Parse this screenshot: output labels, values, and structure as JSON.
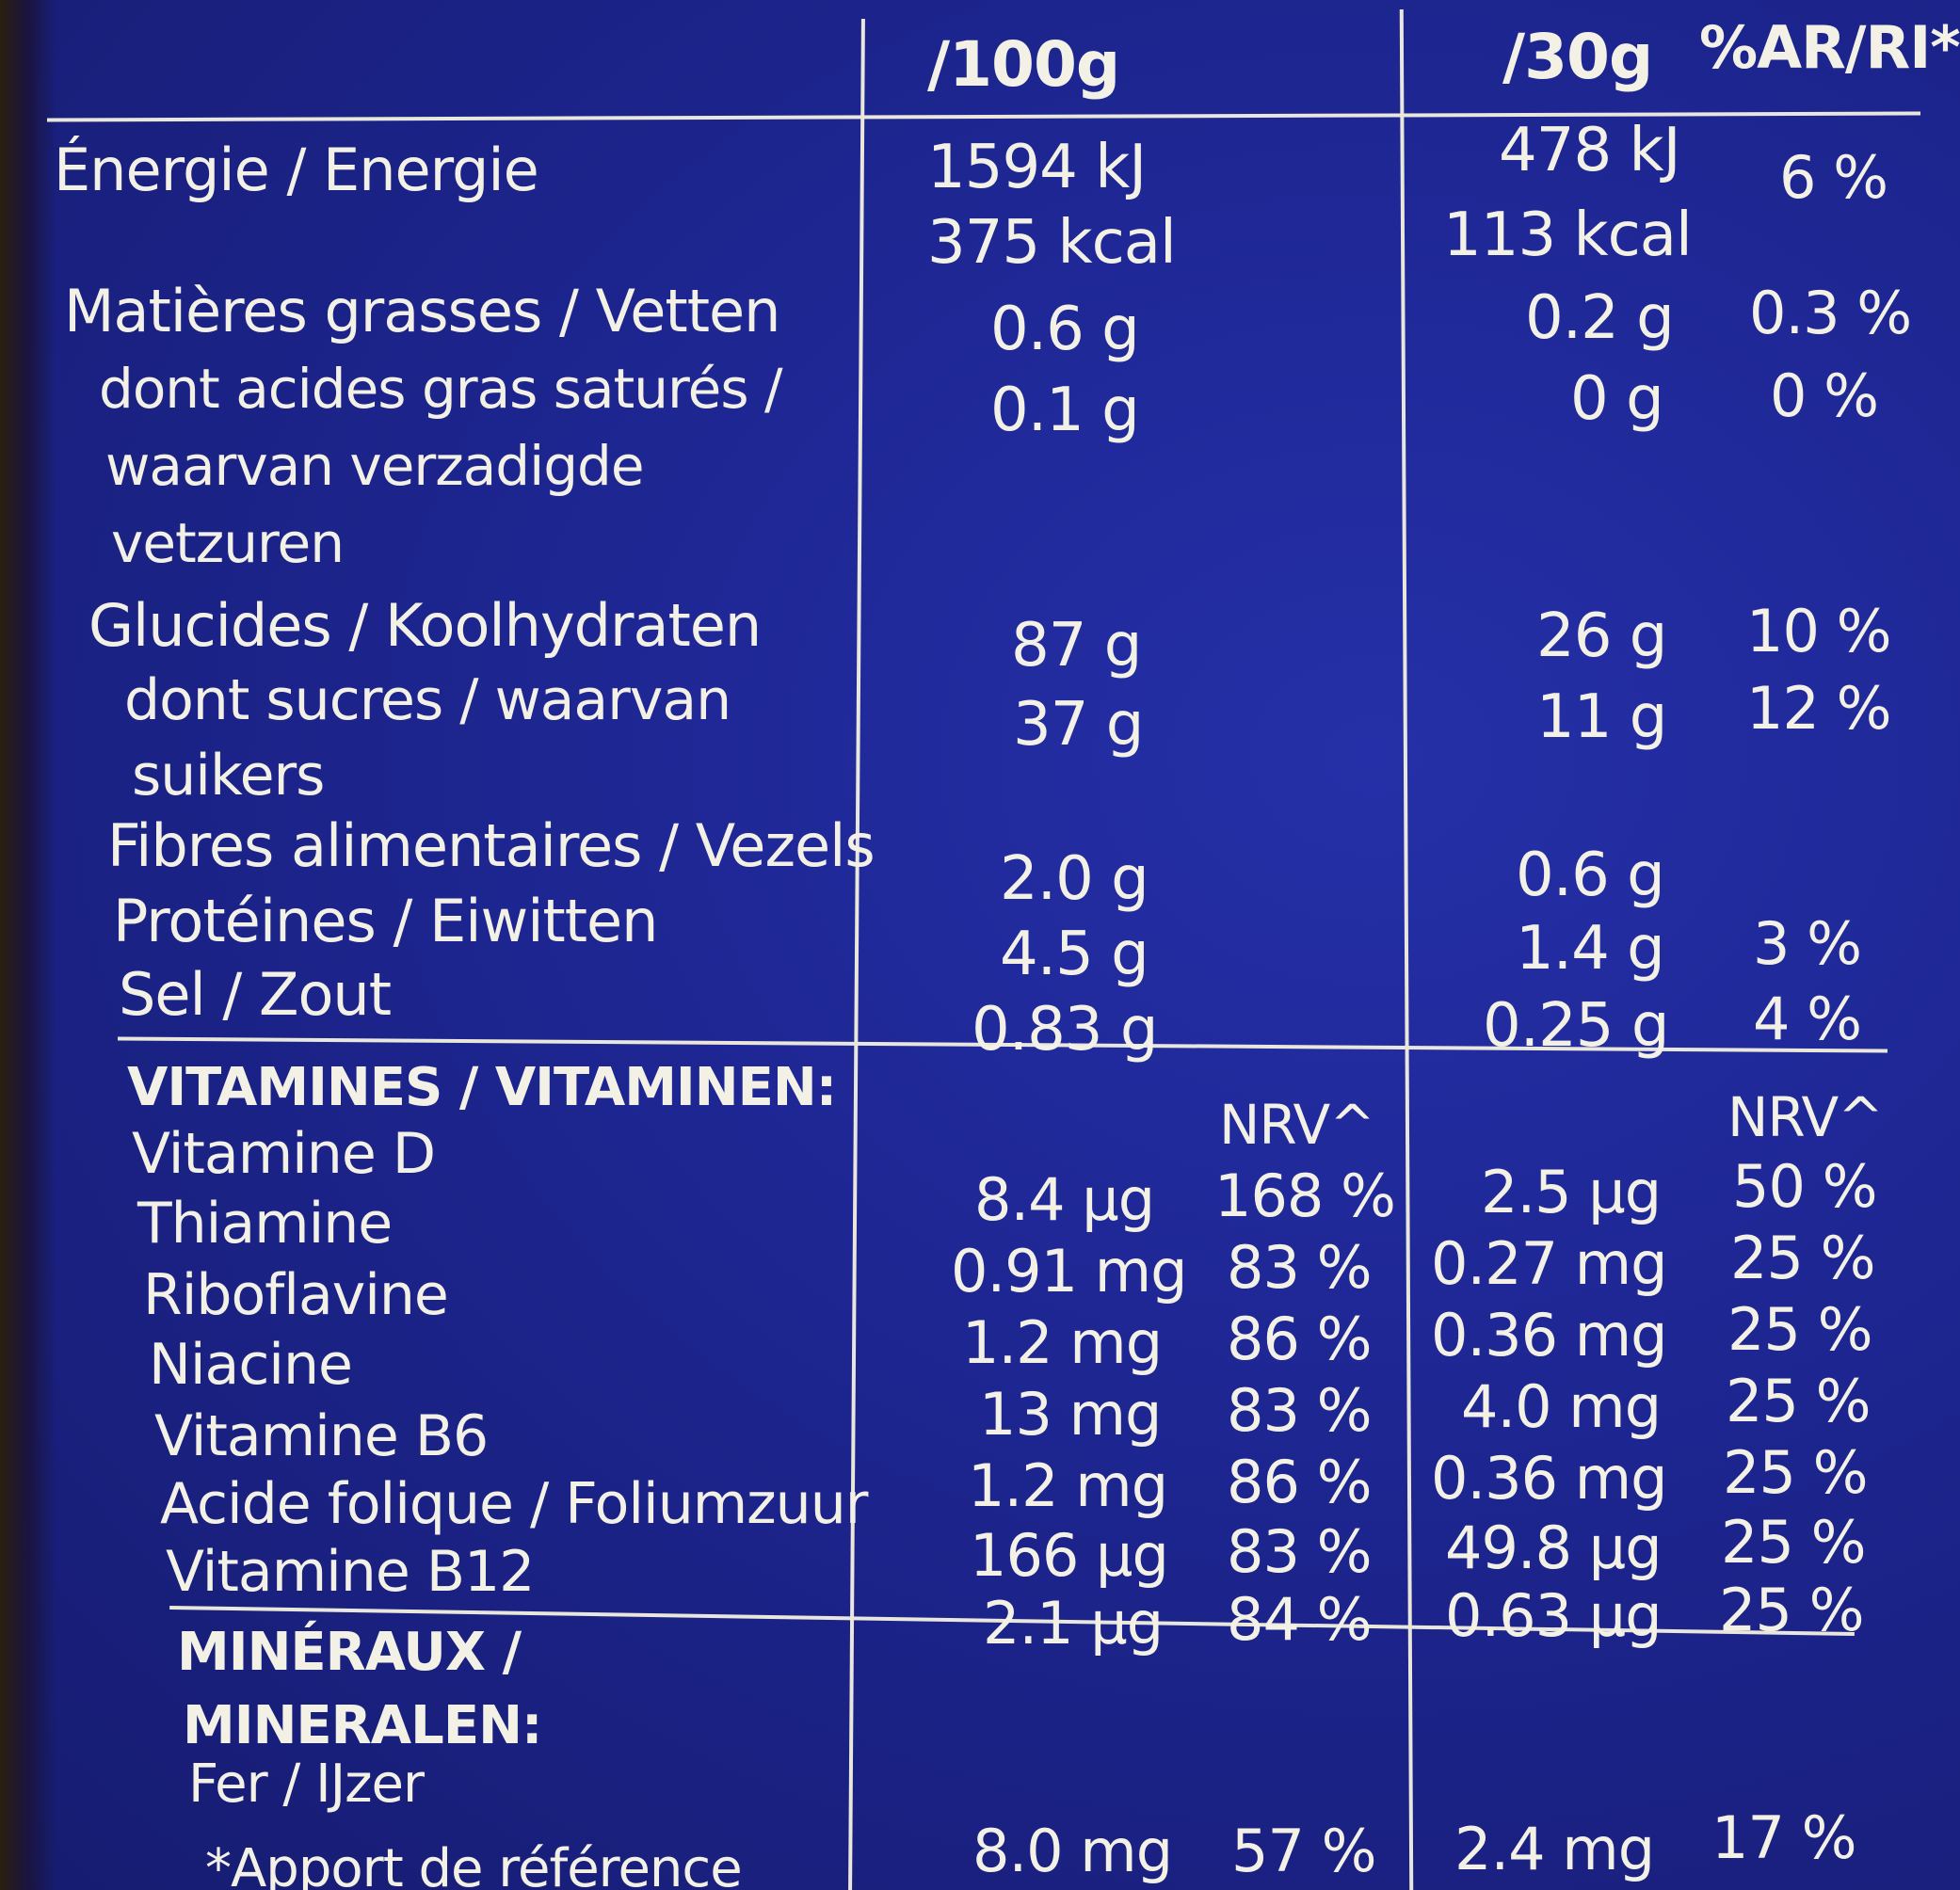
{
  "header": {
    "per100": "/100g",
    "per30": "/30g",
    "ri": "%AR/RI*"
  },
  "nutrients": {
    "energy": {
      "label": "Énergie / Energie",
      "kj100": "1594 kJ",
      "kcal100": "375 kcal",
      "kj30": "478 kJ",
      "kcal30": "113 kcal",
      "ri": "6 %"
    },
    "fat": {
      "label": "Matières grasses / Vetten",
      "v100": "0.6 g",
      "v30": "0.2 g",
      "ri": "0.3 %"
    },
    "satfat": {
      "label1": "dont acides gras saturés /",
      "label2": "waarvan verzadigde",
      "label3": "vetzuren",
      "v100": "0.1 g",
      "v30": "0 g",
      "ri": "0 %"
    },
    "carbs": {
      "label": "Glucides / Koolhydraten",
      "v100": "87 g",
      "v30": "26 g",
      "ri": "10 %"
    },
    "sugars": {
      "label1": "dont sucres / waarvan",
      "label2": "suikers",
      "v100": "37 g",
      "v30": "11 g",
      "ri": "12 %"
    },
    "fibre": {
      "label": "Fibres alimentaires / Vezels",
      "v100": "2.0 g",
      "v30": "0.6 g"
    },
    "protein": {
      "label": "Protéines / Eiwitten",
      "v100": "4.5 g",
      "v30": "1.4 g",
      "ri": "3 %"
    },
    "salt": {
      "label": "Sel / Zout",
      "v100": "0.83 g",
      "v30": "0.25 g",
      "ri": "4 %"
    }
  },
  "vitamins": {
    "heading": "VITAMINES / VITAMINEN:",
    "nrv100": "NRV^",
    "nrv30": "NRV^",
    "rows": [
      {
        "label": "Vitamine D",
        "v100": "8.4 µg",
        "nrv100": "168 %",
        "v30": "2.5 µg",
        "nrv30": "50 %"
      },
      {
        "label": "Thiamine",
        "v100": "0.91 mg",
        "nrv100": "83 %",
        "v30": "0.27 mg",
        "nrv30": "25 %"
      },
      {
        "label": "Riboflavine",
        "v100": "1.2 mg",
        "nrv100": "86 %",
        "v30": "0.36 mg",
        "nrv30": "25 %"
      },
      {
        "label": "Niacine",
        "v100": "13 mg",
        "nrv100": "83 %",
        "v30": "4.0 mg",
        "nrv30": "25 %"
      },
      {
        "label": "Vitamine B6",
        "v100": "1.2 mg",
        "nrv100": "86 %",
        "v30": "0.36 mg",
        "nrv30": "25 %"
      },
      {
        "label": "Acide folique / Foliumzuur",
        "v100": "166 µg",
        "nrv100": "83 %",
        "v30": "49.8 µg",
        "nrv30": "25 %"
      },
      {
        "label": "Vitamine B12",
        "v100": "2.1 µg",
        "nrv100": "84 %",
        "v30": "0.63 µg",
        "nrv30": "25 %"
      }
    ]
  },
  "minerals": {
    "heading1": "MINÉRAUX /",
    "heading2": "MINERALEN:",
    "iron": {
      "label": "Fer / IJzer",
      "v100": "8.0 mg",
      "nrv100": "57 %",
      "v30": "2.4 mg",
      "nrv30": "17 %"
    }
  },
  "footnote": "*Apport de référence"
}
